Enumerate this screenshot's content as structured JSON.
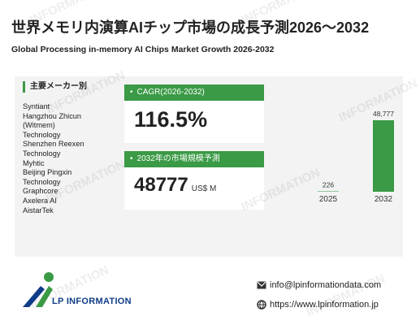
{
  "header": {
    "title": "世界メモリ内演算AIチップ市場の成長予測2026～2032",
    "subtitle": "Global Processing in-memory AI Chips Market Growth 2026-2032"
  },
  "vendors": {
    "heading": "主要メーカー別",
    "items": [
      "Syntiant",
      "Hangzhou Zhicun",
      "(Witmem)",
      "Technology",
      "Shenzhen Reexen",
      "Technology",
      "Myhtic",
      "Beijing Pingxin",
      "Technology",
      "Graphcore",
      "Axelera AI",
      "AistarTek"
    ]
  },
  "cagr_card": {
    "label": "CAGR(2026-2032)",
    "value": "116.5%"
  },
  "size_card": {
    "label": "2032年の市場規模予測",
    "value": "48777",
    "unit": "US$ M"
  },
  "chart_data": {
    "type": "bar",
    "categories": [
      "2025",
      "2032"
    ],
    "values": [
      226,
      48777
    ],
    "value_labels": [
      "226",
      "48,777"
    ],
    "ylim": [
      0,
      48777
    ],
    "bar_color": "#3a9a45",
    "grid": false
  },
  "footer": {
    "logo_text": "LP INFORMATION",
    "email": "info@lpinformationdata.com",
    "website": "https://www.lpinformation.jp",
    "watermark": "INFORMATION"
  }
}
